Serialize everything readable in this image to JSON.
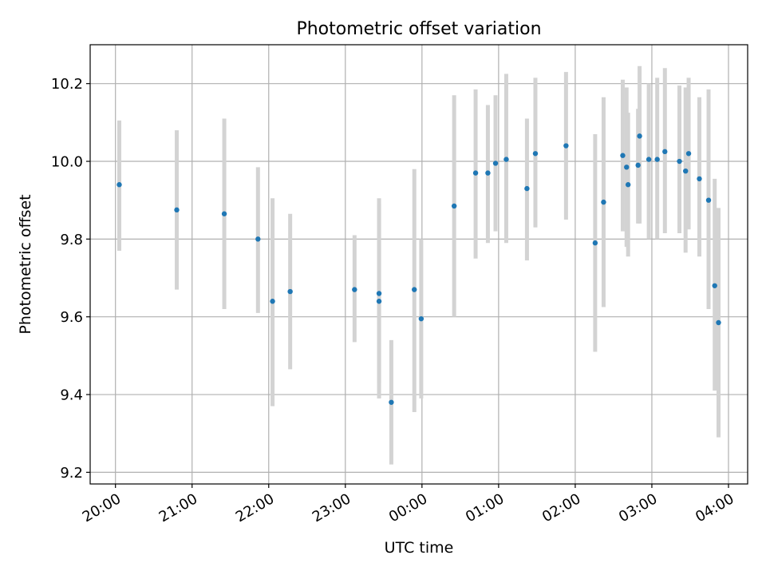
{
  "chart_data": {
    "type": "scatter",
    "title": "Photometric offset variation",
    "xlabel": "UTC time",
    "ylabel": "Photometric offset",
    "x_ticks": [
      "20:00",
      "21:00",
      "22:00",
      "23:00",
      "00:00",
      "01:00",
      "02:00",
      "03:00",
      "04:00"
    ],
    "x_tick_hours": [
      0,
      1,
      2,
      3,
      4,
      5,
      6,
      7,
      8
    ],
    "x_origin": "20:00",
    "x_unit": "hours",
    "xlim": [
      -0.33,
      8.25
    ],
    "y_ticks": [
      "9.2",
      "9.4",
      "9.6",
      "9.8",
      "10.0",
      "10.2"
    ],
    "ylim": [
      9.17,
      10.3
    ],
    "grid": true,
    "point_color": "#1f77b4",
    "errorbar_color": "#d3d3d3",
    "points": [
      {
        "x": 0.05,
        "y": 9.94,
        "lo": 9.77,
        "hi": 10.105
      },
      {
        "x": 0.8,
        "y": 9.875,
        "lo": 9.67,
        "hi": 10.08
      },
      {
        "x": 1.42,
        "y": 9.865,
        "lo": 9.62,
        "hi": 10.11
      },
      {
        "x": 1.86,
        "y": 9.8,
        "lo": 9.61,
        "hi": 9.985
      },
      {
        "x": 2.05,
        "y": 9.64,
        "lo": 9.37,
        "hi": 9.905
      },
      {
        "x": 2.28,
        "y": 9.665,
        "lo": 9.465,
        "hi": 9.865
      },
      {
        "x": 3.12,
        "y": 9.67,
        "lo": 9.535,
        "hi": 9.81
      },
      {
        "x": 3.44,
        "y": 9.66,
        "lo": 9.43,
        "hi": 9.905
      },
      {
        "x": 3.44,
        "y": 9.64,
        "lo": 9.39,
        "hi": 9.89
      },
      {
        "x": 3.6,
        "y": 9.38,
        "lo": 9.22,
        "hi": 9.54
      },
      {
        "x": 3.9,
        "y": 9.67,
        "lo": 9.355,
        "hi": 9.98
      },
      {
        "x": 3.99,
        "y": 9.595,
        "lo": 9.39,
        "hi": 9.8
      },
      {
        "x": 4.42,
        "y": 9.885,
        "lo": 9.6,
        "hi": 10.17
      },
      {
        "x": 4.7,
        "y": 9.97,
        "lo": 9.75,
        "hi": 10.185
      },
      {
        "x": 4.86,
        "y": 9.97,
        "lo": 9.79,
        "hi": 10.145
      },
      {
        "x": 4.96,
        "y": 9.995,
        "lo": 9.82,
        "hi": 10.17
      },
      {
        "x": 5.1,
        "y": 10.005,
        "lo": 9.79,
        "hi": 10.225
      },
      {
        "x": 5.37,
        "y": 9.93,
        "lo": 9.745,
        "hi": 10.11
      },
      {
        "x": 5.48,
        "y": 10.02,
        "lo": 9.83,
        "hi": 10.215
      },
      {
        "x": 5.88,
        "y": 10.04,
        "lo": 9.85,
        "hi": 10.23
      },
      {
        "x": 6.26,
        "y": 9.79,
        "lo": 9.51,
        "hi": 10.07
      },
      {
        "x": 6.37,
        "y": 9.895,
        "lo": 9.625,
        "hi": 10.165
      },
      {
        "x": 6.62,
        "y": 10.015,
        "lo": 9.82,
        "hi": 10.21
      },
      {
        "x": 6.67,
        "y": 9.985,
        "lo": 9.78,
        "hi": 10.19
      },
      {
        "x": 6.69,
        "y": 9.94,
        "lo": 9.755,
        "hi": 10.125
      },
      {
        "x": 6.82,
        "y": 9.99,
        "lo": 9.84,
        "hi": 10.135
      },
      {
        "x": 6.84,
        "y": 10.065,
        "lo": 9.84,
        "hi": 10.245
      },
      {
        "x": 6.96,
        "y": 10.005,
        "lo": 9.8,
        "hi": 10.2
      },
      {
        "x": 7.07,
        "y": 10.005,
        "lo": 9.8,
        "hi": 10.215
      },
      {
        "x": 7.17,
        "y": 10.025,
        "lo": 9.815,
        "hi": 10.24
      },
      {
        "x": 7.36,
        "y": 10.0,
        "lo": 9.815,
        "hi": 10.195
      },
      {
        "x": 7.44,
        "y": 9.975,
        "lo": 9.765,
        "hi": 10.19
      },
      {
        "x": 7.48,
        "y": 10.02,
        "lo": 9.825,
        "hi": 10.215
      },
      {
        "x": 7.62,
        "y": 9.955,
        "lo": 9.755,
        "hi": 10.165
      },
      {
        "x": 7.74,
        "y": 9.9,
        "lo": 9.62,
        "hi": 10.185
      },
      {
        "x": 7.82,
        "y": 9.68,
        "lo": 9.41,
        "hi": 9.955
      },
      {
        "x": 7.87,
        "y": 9.585,
        "lo": 9.29,
        "hi": 9.88
      }
    ]
  }
}
